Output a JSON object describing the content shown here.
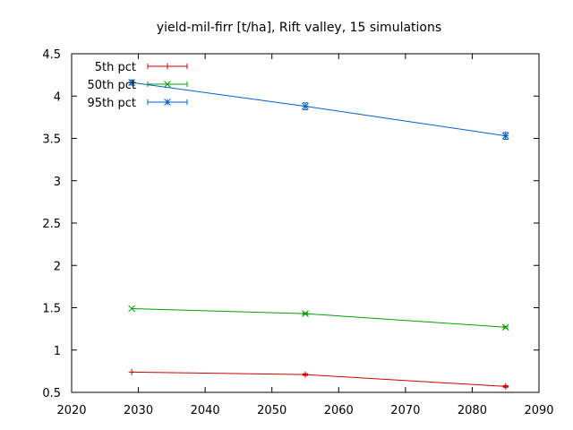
{
  "chart_data": {
    "type": "line",
    "title": "yield-mil-firr [t/ha], Rift valley, 15 simulations",
    "xlabel": "",
    "ylabel": "",
    "xlim": [
      2020,
      2090
    ],
    "ylim": [
      0.5,
      4.5
    ],
    "xticks": [
      "2020",
      "2030",
      "2040",
      "2050",
      "2060",
      "2070",
      "2080",
      "2090"
    ],
    "yticks": [
      "0.5",
      "1",
      "1.5",
      "2",
      "2.5",
      "3",
      "3.5",
      "4",
      "4.5"
    ],
    "grid": false,
    "legend_position": "top-left",
    "x": [
      2029,
      2055,
      2085
    ],
    "series": [
      {
        "name": "5th pct",
        "color": "#d00000",
        "marker": "plus",
        "values": [
          0.74,
          0.71,
          0.57
        ],
        "errors": [
          0.0,
          0.01,
          0.01
        ]
      },
      {
        "name": "50th pct",
        "color": "#00a000",
        "marker": "cross",
        "values": [
          1.49,
          1.43,
          1.27
        ],
        "errors": [
          0.0,
          0.01,
          0.01
        ]
      },
      {
        "name": "95th pct",
        "color": "#0060d0",
        "marker": "star",
        "values": [
          4.16,
          3.88,
          3.53
        ],
        "errors": [
          0.03,
          0.04,
          0.04
        ]
      }
    ]
  }
}
